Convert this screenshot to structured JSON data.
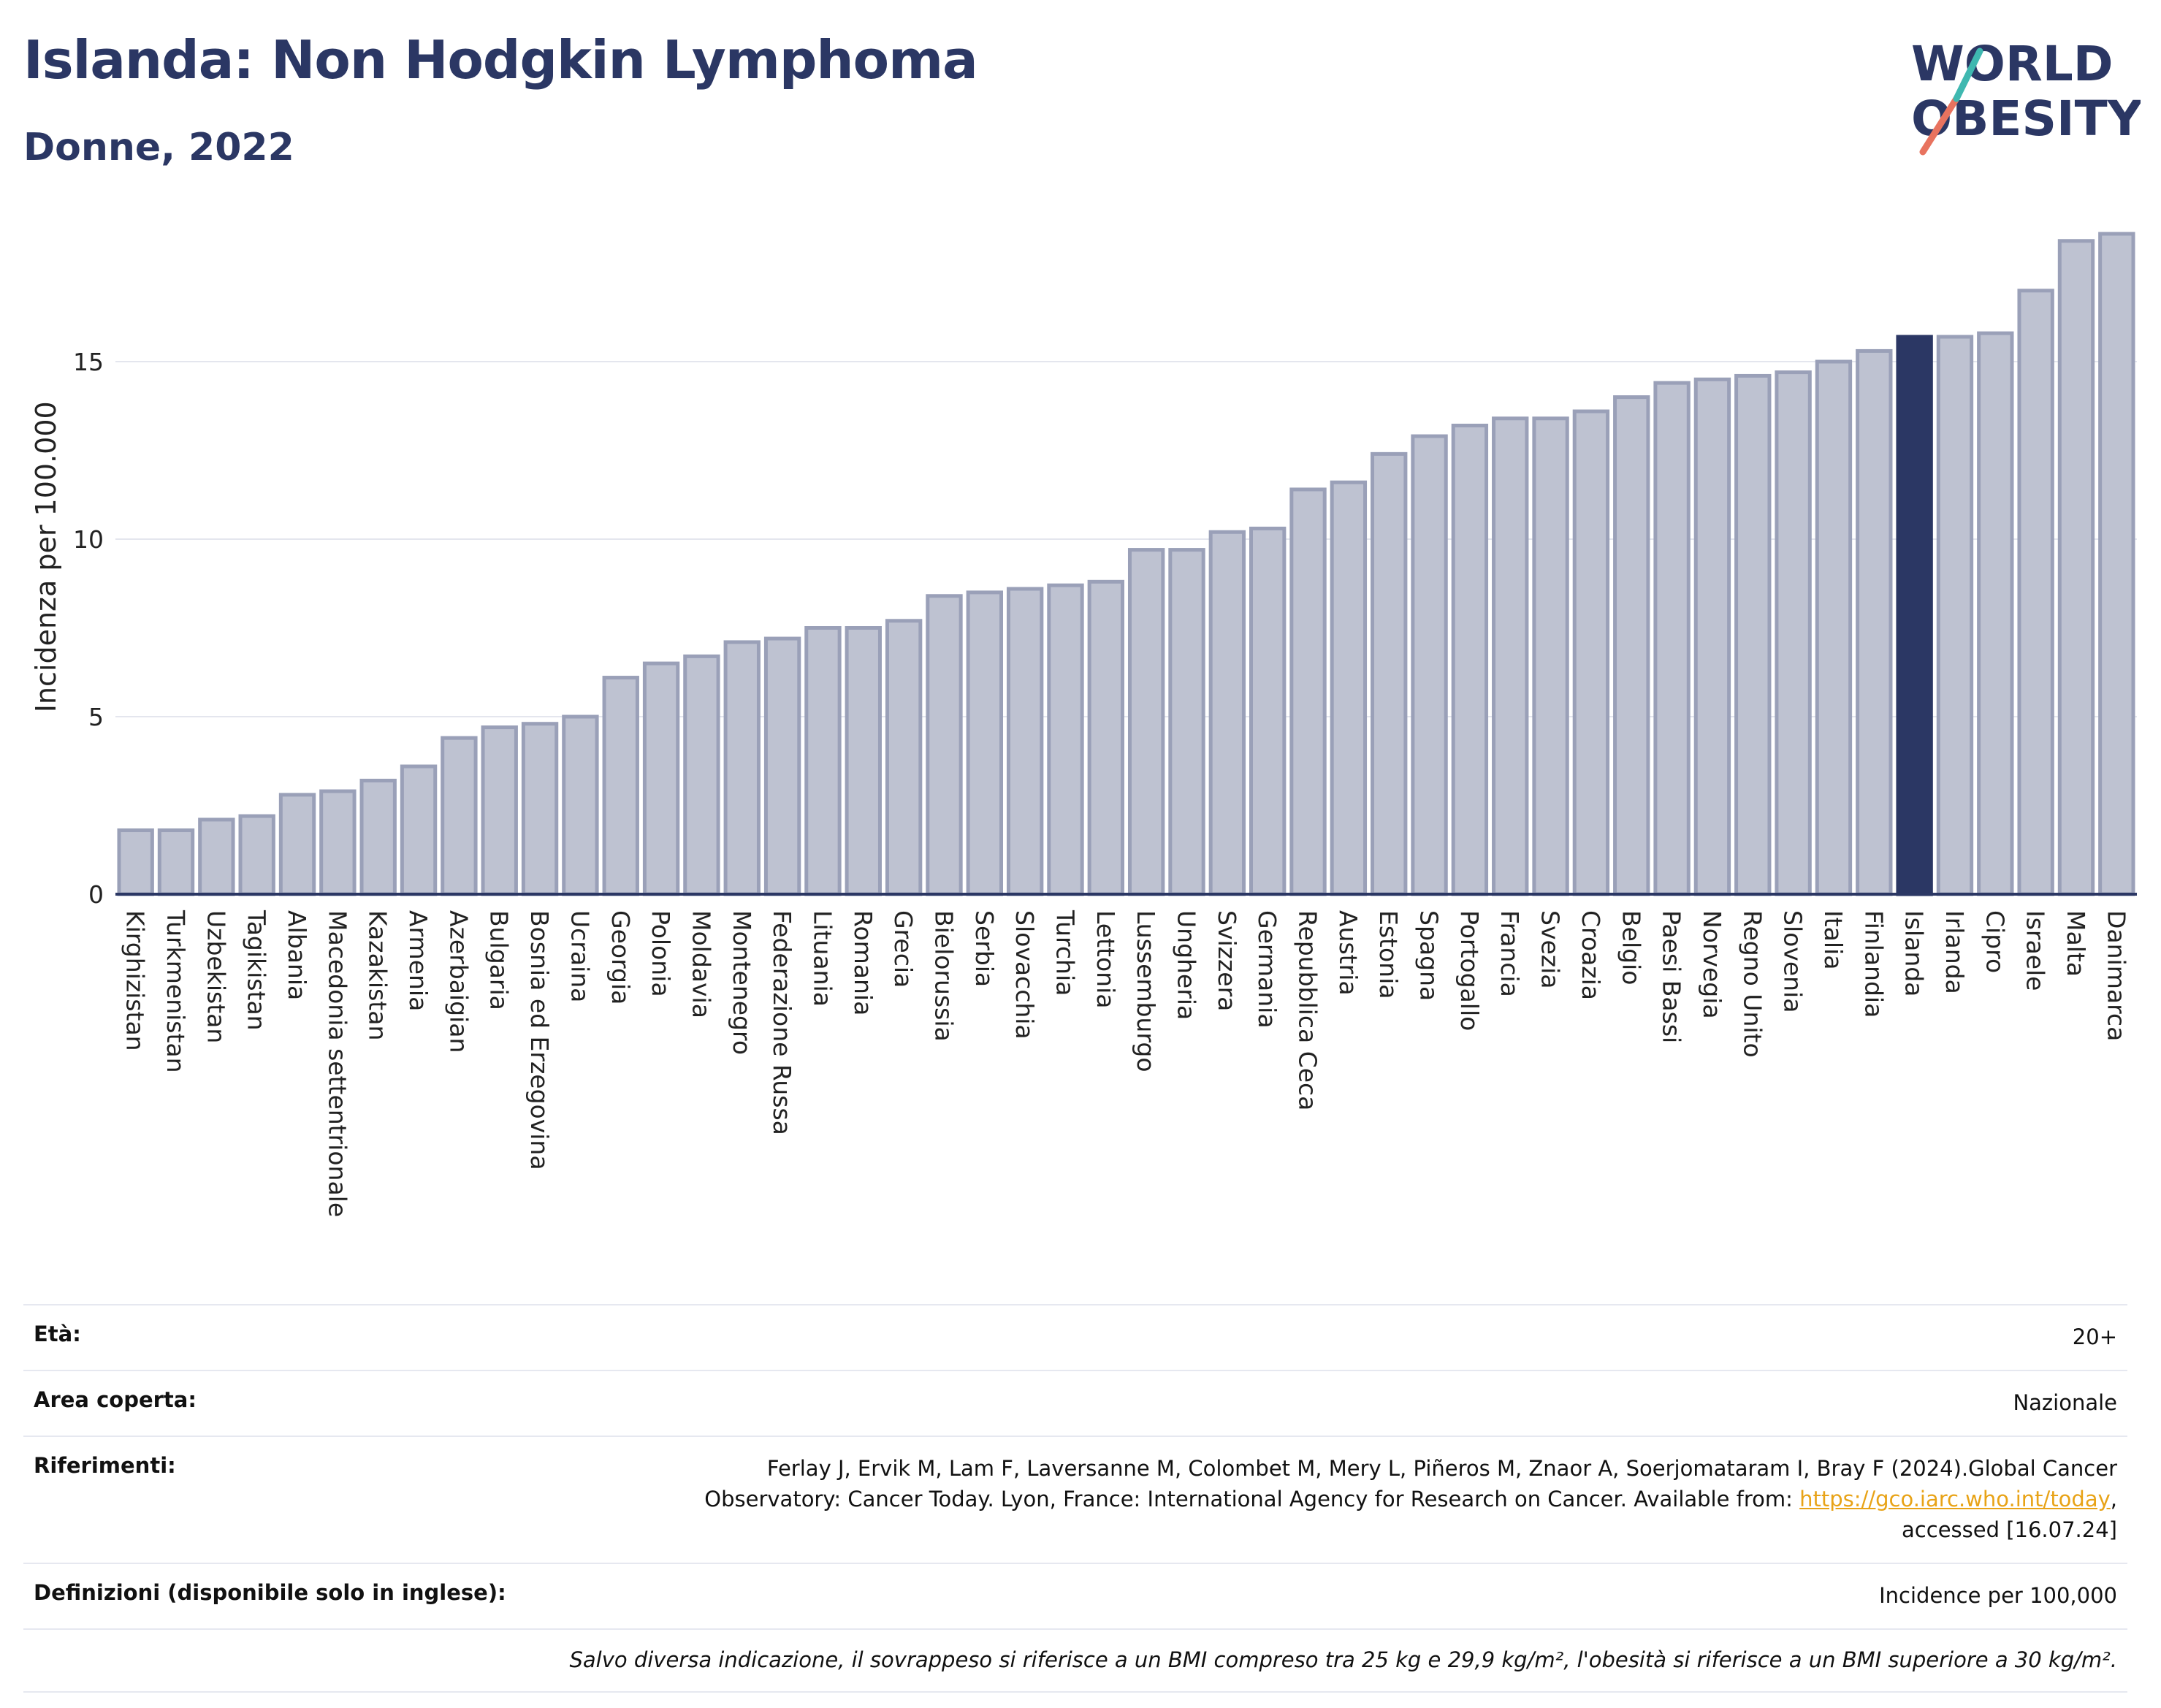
{
  "header": {
    "title": "Islanda: Non Hodgkin Lymphoma",
    "subtitle": "Donne, 2022",
    "logo_line1": "WORLD",
    "logo_line2": "OBESITY"
  },
  "colors": {
    "bar": "#bec2d1",
    "bar_stroke": "#9aa0b8",
    "highlight": "#2b3764",
    "grid": "#e4e6ee",
    "axis": "#2b3764"
  },
  "chart_data": {
    "type": "bar",
    "title": "Islanda: Non Hodgkin Lymphoma",
    "subtitle": "Donne, 2022",
    "ylabel": "Incidenza per 100.000",
    "xlabel": "",
    "ylim": [
      0,
      19
    ],
    "yticks": [
      0,
      5,
      10,
      15
    ],
    "grid": true,
    "highlight": "Islanda",
    "categories": [
      "Kirghizistan",
      "Turkmenistan",
      "Uzbekistan",
      "Tagikistan",
      "Albania",
      "Macedonia settentrionale",
      "Kazakistan",
      "Armenia",
      "Azerbaigian",
      "Bulgaria",
      "Bosnia ed Erzegovina",
      "Ucraina",
      "Georgia",
      "Polonia",
      "Moldavia",
      "Montenegro",
      "Federazione Russa",
      "Lituania",
      "Romania",
      "Grecia",
      "Bielorussia",
      "Serbia",
      "Slovacchia",
      "Turchia",
      "Lettonia",
      "Lussemburgo",
      "Ungheria",
      "Svizzera",
      "Germania",
      "Repubblica Ceca",
      "Austria",
      "Estonia",
      "Spagna",
      "Portogallo",
      "Francia",
      "Svezia",
      "Croazia",
      "Belgio",
      "Paesi Bassi",
      "Norvegia",
      "Regno Unito",
      "Slovenia",
      "Italia",
      "Finlandia",
      "Islanda",
      "Irlanda",
      "Cipro",
      "Israele",
      "Malta",
      "Danimarca"
    ],
    "values": [
      1.8,
      1.8,
      2.1,
      2.2,
      2.8,
      2.9,
      3.2,
      3.6,
      4.4,
      4.7,
      4.8,
      5.0,
      6.1,
      6.5,
      6.7,
      7.1,
      7.2,
      7.5,
      7.5,
      7.7,
      8.4,
      8.5,
      8.6,
      8.7,
      8.8,
      9.7,
      9.7,
      10.2,
      10.3,
      11.4,
      11.6,
      12.4,
      12.9,
      13.2,
      13.4,
      13.4,
      13.6,
      14.0,
      14.4,
      14.5,
      14.6,
      14.7,
      15.0,
      15.3,
      15.7,
      15.7,
      15.8,
      17.0,
      18.4,
      18.6
    ]
  },
  "info": {
    "age_label": "Età:",
    "age_value": "20+",
    "area_label": "Area coperta:",
    "area_value": "Nazionale",
    "ref_label": "Riferimenti:",
    "ref_text1": "Ferlay J, Ervik M, Lam F, Laversanne M, Colombet M, Mery L, Piñeros M, Znaor A, Soerjomataram I, Bray F (2024).Global Cancer Observatory: Cancer Today. Lyon, France: International Agency for Research on Cancer. Available from: ",
    "ref_link": "https://gco.iarc.who.int/today",
    "ref_text2": ", accessed [16.07.24]",
    "def_label": "Definizioni (disponibile solo in inglese):",
    "def_value": "Incidence per 100,000",
    "note": "Salvo diversa indicazione, il sovrappeso si riferisce a un BMI compreso tra 25 kg e 29,9 kg/m², l'obesità si riferisce a un BMI superiore a 30 kg/m²."
  }
}
